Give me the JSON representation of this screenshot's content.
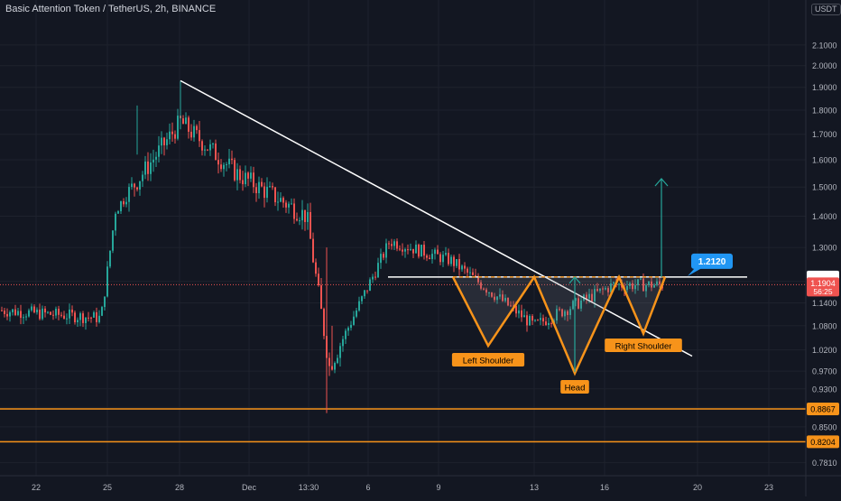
{
  "header": {
    "symbol_title": "Basic Attention Token / TetherUS, 2h, BINANCE",
    "currency": "USDT"
  },
  "colors": {
    "background": "#131722",
    "grid": "#1e222d",
    "up": "#26a69a",
    "down": "#ef5350",
    "orange": "#f7931a",
    "trendline": "#ffffff",
    "target_arrow": "#26a69a",
    "label_blue": "#2196f3"
  },
  "chart_data": {
    "type": "candlestick",
    "title": "Basic Attention Token / TetherUS, 2h, BINANCE",
    "y_axis": {
      "scale": "log",
      "range": [
        0.7635,
        2.196
      ],
      "tick_labels": [
        "2.1000",
        "2.0000",
        "1.9000",
        "1.8000",
        "1.7000",
        "1.6000",
        "1.5000",
        "1.4000",
        "1.3000",
        "1.2000",
        "1.1400",
        "1.0800",
        "1.0200",
        "0.9700",
        "0.9300",
        "0.8900",
        "0.8500",
        "0.7810"
      ]
    },
    "x_axis": {
      "tick_labels": [
        "22",
        "25",
        "28",
        "Dec",
        "13:30",
        "6",
        "9",
        "13",
        "16",
        "20",
        "23"
      ]
    },
    "current_price": {
      "value": "1.1904",
      "countdown": "56:25"
    },
    "horizontal_levels": [
      {
        "label": "0.8867",
        "value": 0.8867
      },
      {
        "label": "0.8204",
        "value": 0.8204
      }
    ],
    "neckline": {
      "value": 1.212,
      "label": "1.2120"
    },
    "trendline": {
      "from": [
        "28",
        1.93
      ],
      "to": [
        "20",
        1.005
      ]
    },
    "pattern": {
      "name": "inverse head and shoulders",
      "points": [
        {
          "role": "left-shoulder",
          "label": "Left Shoulder",
          "price": 1.03
        },
        {
          "role": "head",
          "label": "Head",
          "price": 0.965
        },
        {
          "role": "right-shoulder",
          "label": "Right Shoulder",
          "price": 1.06
        }
      ]
    },
    "target": {
      "from": 1.212,
      "to": 1.53
    },
    "price_path": [
      [
        "22",
        1.12
      ],
      [
        "25",
        1.1
      ],
      [
        "25",
        1.42
      ],
      [
        "28",
        1.75
      ],
      [
        "Dec",
        1.55
      ],
      [
        "13:30",
        1.4
      ],
      [
        "13:30",
        0.98
      ],
      [
        "6",
        1.32
      ],
      [
        "9",
        1.26
      ],
      [
        "13",
        1.08
      ],
      [
        "16",
        1.19
      ],
      [
        "20",
        1.19
      ]
    ]
  }
}
